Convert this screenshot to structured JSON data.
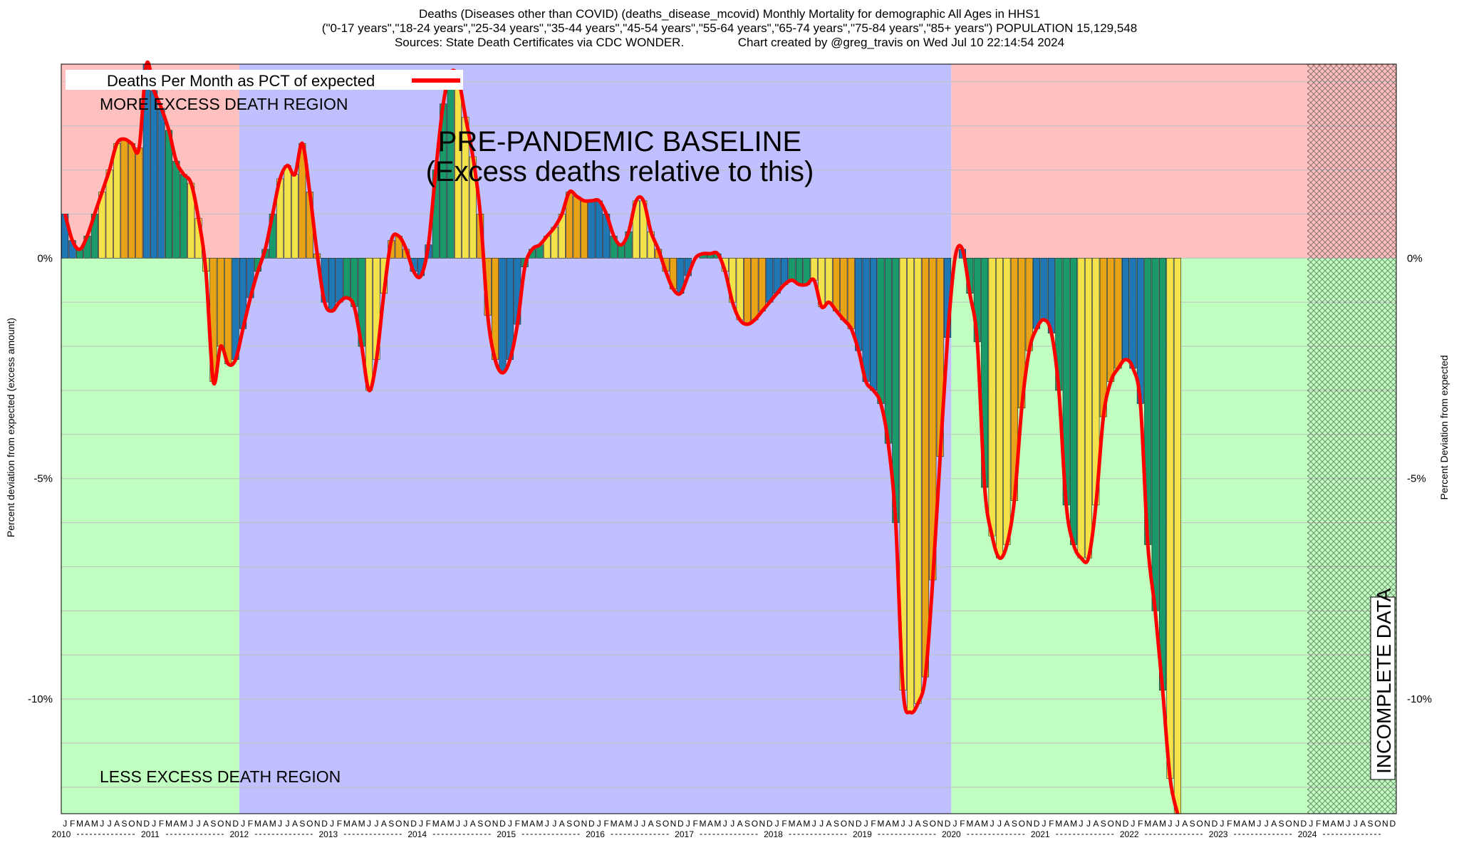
{
  "titles": {
    "line1": "Deaths (Diseases other than COVID) (deaths_disease_mcovid) Monthly Mortality for demographic All Ages in HHS1",
    "line2": "(\"0-17 years\",\"18-24 years\",\"25-34 years\",\"35-44 years\",\"45-54 years\",\"55-64 years\",\"65-74 years\",\"75-84 years\",\"85+ years\") POPULATION 15,129,548",
    "line3": "Sources: State Death Certificates via CDC WONDER.                Chart created by @greg_travis on Wed Jul 10 22:14:54 2024"
  },
  "chart_data": {
    "type": "bar",
    "x_start": "2010-01",
    "y_unit": "percent",
    "ylim": [
      -12.6,
      4.4
    ],
    "yticks": [
      0,
      -5,
      -10
    ],
    "ytick_labels": [
      "0%",
      "-5%",
      "-10%"
    ],
    "ylabel_left": "Percent deviation from expected (excess amount)",
    "ylabel_right": "Percent Deviation from expected",
    "legend": {
      "label": "Deaths Per Month as PCT of expected",
      "color": "#ff0000",
      "position": "top-left"
    },
    "labels": {
      "more_excess": "MORE EXCESS DEATH REGION",
      "less_excess": "LESS EXCESS DEATH REGION",
      "baseline_line1": "PRE-PANDEMIC BASELINE",
      "baseline_line2": "(Excess deaths relative to this)",
      "incomplete": "INCOMPLETE DATA"
    },
    "month_letters": [
      "J",
      "F",
      "M",
      "A",
      "M",
      "J",
      "J",
      "A",
      "S",
      "O",
      "N",
      "D"
    ],
    "years": [
      "2010",
      "2011",
      "2012",
      "2013",
      "2014",
      "2015",
      "2016",
      "2017",
      "2018",
      "2019",
      "2020",
      "2021",
      "2022",
      "2023",
      "2024"
    ],
    "regions": {
      "baseline_start": "2012-01",
      "baseline_end": "2019-12",
      "incomplete_start": "2024-01"
    },
    "colors": {
      "winter": "#1f77b4",
      "spring": "#1a9a6a",
      "summer": "#f4e24a",
      "fall": "#e8a317",
      "more_region": "#ffc0c0",
      "less_region": "#c0ffc0",
      "baseline_region": "#c0c0ff",
      "line": "#ff0000"
    },
    "values": [
      1.0,
      0.4,
      0.2,
      0.5,
      1.0,
      1.5,
      2.0,
      2.6,
      2.7,
      2.6,
      2.5,
      4.4,
      3.8,
      3.4,
      2.9,
      2.2,
      1.9,
      1.7,
      0.9,
      -0.3,
      -2.8,
      -2.0,
      -2.4,
      -2.3,
      -1.6,
      -0.9,
      -0.3,
      0.2,
      1.0,
      1.8,
      2.1,
      1.9,
      2.6,
      1.5,
      0.1,
      -1.0,
      -1.2,
      -1.0,
      -0.9,
      -1.1,
      -2.0,
      -3.0,
      -2.3,
      -0.8,
      0.4,
      0.5,
      0.2,
      -0.3,
      -0.4,
      0.3,
      2.0,
      3.5,
      4.2,
      4.1,
      3.2,
      2.3,
      1.0,
      -1.3,
      -2.3,
      -2.6,
      -2.3,
      -1.5,
      -0.2,
      0.2,
      0.3,
      0.5,
      0.7,
      1.0,
      1.5,
      1.4,
      1.3,
      1.3,
      1.3,
      1.0,
      0.5,
      0.3,
      0.6,
      1.3,
      1.3,
      0.6,
      0.2,
      -0.3,
      -0.7,
      -0.8,
      -0.4,
      0.0,
      0.1,
      0.1,
      0.1,
      -0.3,
      -1.0,
      -1.4,
      -1.5,
      -1.4,
      -1.2,
      -1.0,
      -0.8,
      -0.6,
      -0.5,
      -0.6,
      -0.6,
      -0.5,
      -1.1,
      -1.0,
      -1.2,
      -1.4,
      -1.6,
      -2.1,
      -2.8,
      -3.0,
      -3.3,
      -4.2,
      -6.0,
      -9.8,
      -10.3,
      -10.1,
      -9.5,
      -7.3,
      -4.5,
      -1.8,
      0.0,
      0.2,
      -0.8,
      -1.9,
      -5.2,
      -6.3,
      -6.8,
      -6.5,
      -5.5,
      -3.4,
      -2.1,
      -1.6,
      -1.4,
      -1.7,
      -3.0,
      -5.6,
      -6.5,
      -6.8,
      -6.8,
      -5.6,
      -3.6,
      -2.8,
      -2.5,
      -2.3,
      -2.5,
      -3.3,
      -6.5,
      -8.0,
      -9.8,
      -11.8,
      -12.6
    ]
  }
}
